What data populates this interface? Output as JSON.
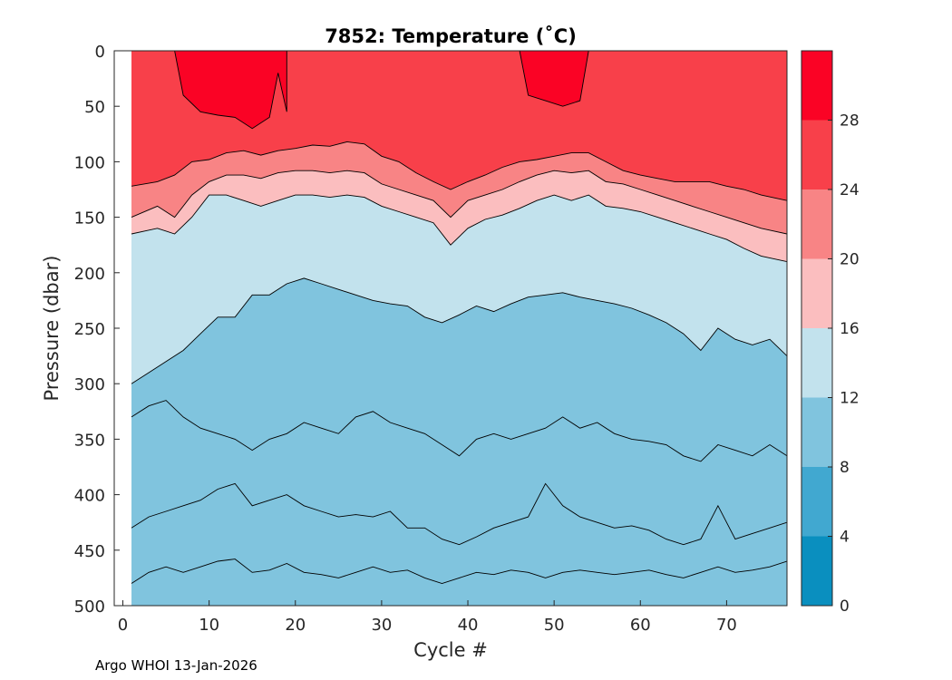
{
  "chart_data": {
    "type": "contour",
    "title": "7852:  Temperature (˚C)",
    "xlabel": "Cycle #",
    "ylabel": "Pressure (dbar)",
    "xlim": [
      -1,
      77
    ],
    "ylim": [
      500,
      0
    ],
    "xticks": [
      0,
      10,
      20,
      30,
      40,
      50,
      60,
      70
    ],
    "yticks": [
      0,
      50,
      100,
      150,
      200,
      250,
      300,
      350,
      400,
      450,
      500
    ],
    "x_range": [
      1,
      77
    ],
    "colorbar": {
      "levels": [
        0,
        4,
        8,
        12,
        16,
        20,
        24,
        28
      ],
      "tick_labels": [
        "0",
        "4",
        "8",
        "12",
        "16",
        "20",
        "24",
        "28"
      ],
      "max": 32,
      "band_colors": [
        "#0a8fbf",
        "#41a8d0",
        "#80c4de",
        "#c2e2ed",
        "#fbbebf",
        "#f88485",
        "#f8404a",
        "#fa0325"
      ]
    },
    "isotherms": [
      {
        "level": 28,
        "region": "upper-left",
        "points": [
          [
            6,
            0
          ],
          [
            7,
            40
          ],
          [
            9,
            55
          ],
          [
            11,
            58
          ],
          [
            13,
            60
          ],
          [
            15,
            70
          ],
          [
            17,
            60
          ],
          [
            18,
            20
          ],
          [
            19,
            55
          ],
          [
            19,
            0
          ]
        ]
      },
      {
        "level": 28,
        "region": "mid",
        "points": [
          [
            46,
            0
          ],
          [
            47,
            40
          ],
          [
            49,
            45
          ],
          [
            51,
            50
          ],
          [
            53,
            45
          ],
          [
            54,
            0
          ]
        ]
      },
      {
        "level": 24,
        "points": [
          [
            1,
            122
          ],
          [
            4,
            118
          ],
          [
            6,
            112
          ],
          [
            8,
            100
          ],
          [
            10,
            98
          ],
          [
            12,
            92
          ],
          [
            14,
            90
          ],
          [
            16,
            94
          ],
          [
            18,
            90
          ],
          [
            20,
            88
          ],
          [
            22,
            85
          ],
          [
            24,
            86
          ],
          [
            26,
            82
          ],
          [
            28,
            84
          ],
          [
            30,
            95
          ],
          [
            32,
            100
          ],
          [
            34,
            110
          ],
          [
            36,
            118
          ],
          [
            38,
            125
          ],
          [
            40,
            118
          ],
          [
            42,
            112
          ],
          [
            44,
            105
          ],
          [
            46,
            100
          ],
          [
            48,
            98
          ],
          [
            50,
            95
          ],
          [
            52,
            92
          ],
          [
            54,
            92
          ],
          [
            56,
            100
          ],
          [
            58,
            108
          ],
          [
            60,
            112
          ],
          [
            62,
            115
          ],
          [
            64,
            118
          ],
          [
            66,
            118
          ],
          [
            68,
            118
          ],
          [
            70,
            122
          ],
          [
            72,
            125
          ],
          [
            74,
            130
          ],
          [
            77,
            135
          ]
        ]
      },
      {
        "level": 20,
        "points": [
          [
            1,
            150
          ],
          [
            4,
            140
          ],
          [
            6,
            150
          ],
          [
            8,
            130
          ],
          [
            10,
            118
          ],
          [
            12,
            112
          ],
          [
            14,
            112
          ],
          [
            16,
            115
          ],
          [
            18,
            110
          ],
          [
            20,
            108
          ],
          [
            22,
            108
          ],
          [
            24,
            110
          ],
          [
            26,
            108
          ],
          [
            28,
            110
          ],
          [
            30,
            120
          ],
          [
            32,
            125
          ],
          [
            34,
            130
          ],
          [
            36,
            135
          ],
          [
            38,
            150
          ],
          [
            40,
            135
          ],
          [
            42,
            130
          ],
          [
            44,
            125
          ],
          [
            46,
            118
          ],
          [
            48,
            112
          ],
          [
            50,
            108
          ],
          [
            52,
            110
          ],
          [
            54,
            108
          ],
          [
            56,
            118
          ],
          [
            58,
            120
          ],
          [
            60,
            125
          ],
          [
            62,
            130
          ],
          [
            64,
            135
          ],
          [
            66,
            140
          ],
          [
            68,
            145
          ],
          [
            70,
            150
          ],
          [
            72,
            155
          ],
          [
            74,
            160
          ],
          [
            77,
            165
          ]
        ]
      },
      {
        "level": 16,
        "points": [
          [
            1,
            165
          ],
          [
            4,
            160
          ],
          [
            6,
            165
          ],
          [
            8,
            150
          ],
          [
            10,
            130
          ],
          [
            12,
            130
          ],
          [
            14,
            135
          ],
          [
            16,
            140
          ],
          [
            18,
            135
          ],
          [
            20,
            130
          ],
          [
            22,
            130
          ],
          [
            24,
            132
          ],
          [
            26,
            130
          ],
          [
            28,
            132
          ],
          [
            30,
            140
          ],
          [
            32,
            145
          ],
          [
            34,
            150
          ],
          [
            36,
            155
          ],
          [
            38,
            175
          ],
          [
            40,
            160
          ],
          [
            42,
            152
          ],
          [
            44,
            148
          ],
          [
            46,
            142
          ],
          [
            48,
            135
          ],
          [
            50,
            130
          ],
          [
            52,
            135
          ],
          [
            54,
            130
          ],
          [
            56,
            140
          ],
          [
            58,
            142
          ],
          [
            60,
            145
          ],
          [
            62,
            150
          ],
          [
            64,
            155
          ],
          [
            66,
            160
          ],
          [
            68,
            165
          ],
          [
            70,
            170
          ],
          [
            72,
            178
          ],
          [
            74,
            185
          ],
          [
            77,
            190
          ]
        ]
      },
      {
        "level": 12,
        "points": [
          [
            1,
            300
          ],
          [
            3,
            290
          ],
          [
            5,
            280
          ],
          [
            7,
            270
          ],
          [
            9,
            255
          ],
          [
            11,
            240
          ],
          [
            13,
            240
          ],
          [
            15,
            220
          ],
          [
            17,
            220
          ],
          [
            19,
            210
          ],
          [
            21,
            205
          ],
          [
            23,
            210
          ],
          [
            25,
            215
          ],
          [
            27,
            220
          ],
          [
            29,
            225
          ],
          [
            31,
            228
          ],
          [
            33,
            230
          ],
          [
            35,
            240
          ],
          [
            37,
            245
          ],
          [
            39,
            238
          ],
          [
            41,
            230
          ],
          [
            43,
            235
          ],
          [
            45,
            228
          ],
          [
            47,
            222
          ],
          [
            49,
            220
          ],
          [
            51,
            218
          ],
          [
            53,
            222
          ],
          [
            55,
            225
          ],
          [
            57,
            228
          ],
          [
            59,
            232
          ],
          [
            61,
            238
          ],
          [
            63,
            245
          ],
          [
            65,
            255
          ],
          [
            67,
            270
          ],
          [
            69,
            250
          ],
          [
            71,
            260
          ],
          [
            73,
            265
          ],
          [
            75,
            260
          ],
          [
            77,
            275
          ]
        ]
      },
      {
        "level": 10,
        "points": [
          [
            1,
            330
          ],
          [
            3,
            320
          ],
          [
            5,
            315
          ],
          [
            7,
            330
          ],
          [
            9,
            340
          ],
          [
            11,
            345
          ],
          [
            13,
            350
          ],
          [
            15,
            360
          ],
          [
            17,
            350
          ],
          [
            19,
            345
          ],
          [
            21,
            335
          ],
          [
            23,
            340
          ],
          [
            25,
            345
          ],
          [
            27,
            330
          ],
          [
            29,
            325
          ],
          [
            31,
            335
          ],
          [
            33,
            340
          ],
          [
            35,
            345
          ],
          [
            37,
            355
          ],
          [
            39,
            365
          ],
          [
            41,
            350
          ],
          [
            43,
            345
          ],
          [
            45,
            350
          ],
          [
            47,
            345
          ],
          [
            49,
            340
          ],
          [
            51,
            330
          ],
          [
            53,
            340
          ],
          [
            55,
            335
          ],
          [
            57,
            345
          ],
          [
            59,
            350
          ],
          [
            61,
            352
          ],
          [
            63,
            355
          ],
          [
            65,
            365
          ],
          [
            67,
            370
          ],
          [
            69,
            355
          ],
          [
            71,
            360
          ],
          [
            73,
            365
          ],
          [
            75,
            355
          ],
          [
            77,
            365
          ]
        ]
      },
      {
        "level": 9,
        "points": [
          [
            1,
            430
          ],
          [
            3,
            420
          ],
          [
            5,
            415
          ],
          [
            7,
            410
          ],
          [
            9,
            405
          ],
          [
            11,
            395
          ],
          [
            13,
            390
          ],
          [
            15,
            410
          ],
          [
            17,
            405
          ],
          [
            19,
            400
          ],
          [
            21,
            410
          ],
          [
            23,
            415
          ],
          [
            25,
            420
          ],
          [
            27,
            418
          ],
          [
            29,
            420
          ],
          [
            31,
            415
          ],
          [
            33,
            430
          ],
          [
            35,
            430
          ],
          [
            37,
            440
          ],
          [
            39,
            445
          ],
          [
            41,
            438
          ],
          [
            43,
            430
          ],
          [
            45,
            425
          ],
          [
            47,
            420
          ],
          [
            49,
            390
          ],
          [
            51,
            410
          ],
          [
            53,
            420
          ],
          [
            55,
            425
          ],
          [
            57,
            430
          ],
          [
            59,
            428
          ],
          [
            61,
            432
          ],
          [
            63,
            440
          ],
          [
            65,
            445
          ],
          [
            67,
            440
          ],
          [
            69,
            410
          ],
          [
            71,
            440
          ],
          [
            73,
            435
          ],
          [
            75,
            430
          ],
          [
            77,
            425
          ]
        ]
      },
      {
        "level": 8,
        "points": [
          [
            1,
            480
          ],
          [
            3,
            470
          ],
          [
            5,
            465
          ],
          [
            7,
            470
          ],
          [
            9,
            465
          ],
          [
            11,
            460
          ],
          [
            13,
            458
          ],
          [
            15,
            470
          ],
          [
            17,
            468
          ],
          [
            19,
            462
          ],
          [
            21,
            470
          ],
          [
            23,
            472
          ],
          [
            25,
            475
          ],
          [
            27,
            470
          ],
          [
            29,
            465
          ],
          [
            31,
            470
          ],
          [
            33,
            468
          ],
          [
            35,
            475
          ],
          [
            37,
            480
          ],
          [
            39,
            475
          ],
          [
            41,
            470
          ],
          [
            43,
            472
          ],
          [
            45,
            468
          ],
          [
            47,
            470
          ],
          [
            49,
            475
          ],
          [
            51,
            470
          ],
          [
            53,
            468
          ],
          [
            55,
            470
          ],
          [
            57,
            472
          ],
          [
            59,
            470
          ],
          [
            61,
            468
          ],
          [
            63,
            472
          ],
          [
            65,
            475
          ],
          [
            67,
            470
          ],
          [
            69,
            465
          ],
          [
            71,
            470
          ],
          [
            73,
            468
          ],
          [
            75,
            465
          ],
          [
            77,
            460
          ]
        ]
      }
    ]
  },
  "footer": "Argo WHOI 13-Jan-2026"
}
